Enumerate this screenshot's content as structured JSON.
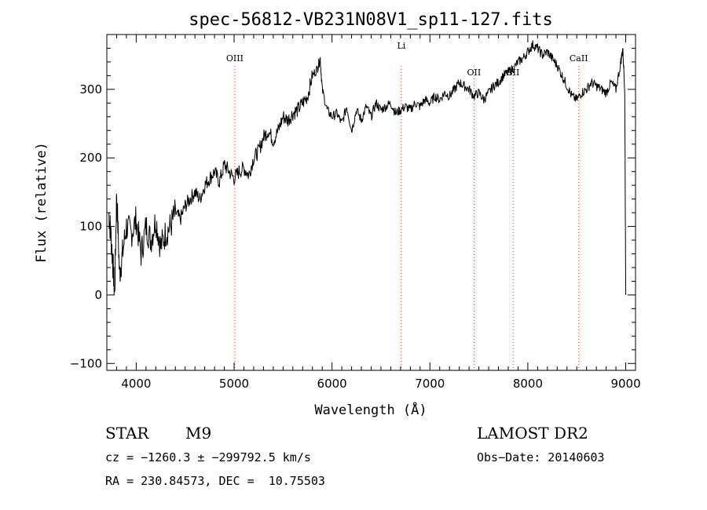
{
  "chart_data": {
    "type": "line",
    "title": "spec-56812-VB231N08V1_sp11-127.fits",
    "xlabel": "Wavelength (Å)",
    "ylabel": "Flux (relative)",
    "xlim": [
      3700,
      9100
    ],
    "ylim": [
      -110,
      380
    ],
    "x_ticks": [
      4000,
      5000,
      6000,
      7000,
      8000,
      9000
    ],
    "y_ticks": [
      -100,
      0,
      100,
      200,
      300
    ],
    "grid": false,
    "spectral_lines": [
      {
        "label": "OIII",
        "x": 5007
      },
      {
        "label": "Li",
        "x": 6708
      },
      {
        "label": "OII",
        "x": 7450
      },
      {
        "label": "SII",
        "x": 7850
      },
      {
        "label": "CaII",
        "x": 8520
      }
    ],
    "series": [
      {
        "x": [
          3720,
          3740,
          3760,
          3780,
          3800,
          3830,
          3860,
          3900,
          3950,
          4000,
          4050,
          4100,
          4150,
          4200,
          4250,
          4300,
          4350,
          4400,
          4450,
          4500,
          4550,
          4600,
          4650,
          4700,
          4750,
          4800,
          4850,
          4900,
          4950,
          5000,
          5050,
          5100,
          5150,
          5200,
          5250,
          5300,
          5350,
          5400,
          5450,
          5500,
          5550,
          5600,
          5650,
          5700,
          5750,
          5800,
          5850,
          5880,
          5900,
          5950,
          6000,
          6050,
          6100,
          6150,
          6200,
          6250,
          6300,
          6350,
          6400,
          6450,
          6500,
          6550,
          6600,
          6650,
          6700,
          6750,
          6800,
          6850,
          6900,
          6950,
          7000,
          7050,
          7100,
          7150,
          7200,
          7250,
          7300,
          7350,
          7400,
          7450,
          7500,
          7550,
          7600,
          7650,
          7700,
          7750,
          7800,
          7850,
          7900,
          7950,
          8000,
          8050,
          8100,
          8150,
          8200,
          8250,
          8300,
          8350,
          8400,
          8450,
          8500,
          8550,
          8600,
          8650,
          8700,
          8750,
          8800,
          8850,
          8900,
          8950,
          8970,
          8990,
          9000
        ],
        "values": [
          120,
          90,
          50,
          0,
          150,
          30,
          60,
          100,
          90,
          110,
          60,
          100,
          80,
          110,
          70,
          90,
          100,
          120,
          110,
          130,
          140,
          150,
          140,
          160,
          170,
          180,
          165,
          190,
          180,
          170,
          180,
          185,
          175,
          200,
          210,
          230,
          240,
          225,
          240,
          260,
          255,
          265,
          270,
          280,
          290,
          320,
          330,
          345,
          300,
          270,
          260,
          265,
          250,
          275,
          240,
          270,
          255,
          275,
          260,
          280,
          270,
          275,
          280,
          265,
          270,
          275,
          270,
          280,
          275,
          285,
          280,
          290,
          285,
          295,
          290,
          300,
          310,
          305,
          300,
          290,
          295,
          285,
          295,
          305,
          310,
          320,
          325,
          330,
          340,
          345,
          355,
          365,
          360,
          350,
          355,
          345,
          335,
          320,
          305,
          290,
          285,
          295,
          300,
          310,
          305,
          300,
          295,
          310,
          300,
          340,
          360,
          300,
          0
        ]
      }
    ]
  },
  "info": {
    "object_class": "STAR",
    "subclass": "M9",
    "survey": "LAMOST DR2",
    "cz": "cz = −1260.3 ± −299792.5 km/s",
    "obs_date": "Obs−Date: 20140603",
    "coords": "RA = 230.84573, DEC =  10.75503"
  }
}
